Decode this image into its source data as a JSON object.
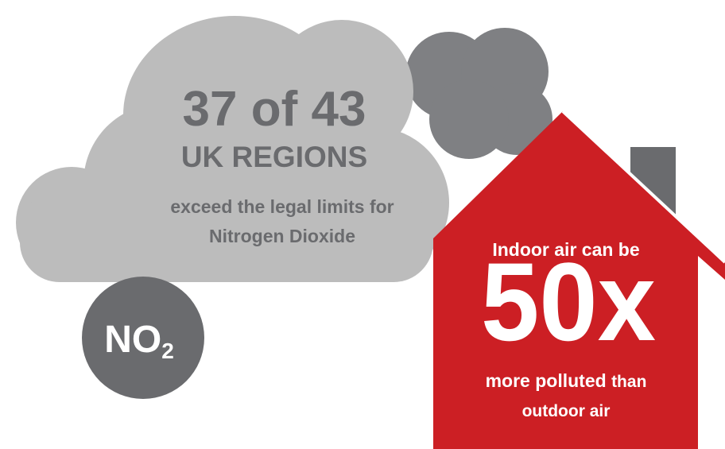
{
  "cloud": {
    "headline": "37 of 43",
    "subhead": "UK REGIONS",
    "line1": "exceed the legal limits for",
    "line2": "Nitrogen Dioxide"
  },
  "badge": {
    "symbol": "NO",
    "subscript": "2"
  },
  "house": {
    "intro": "Indoor air can be",
    "big": "50x",
    "emphasis": "more polluted",
    "rest": "than",
    "line3": "outdoor air"
  }
}
